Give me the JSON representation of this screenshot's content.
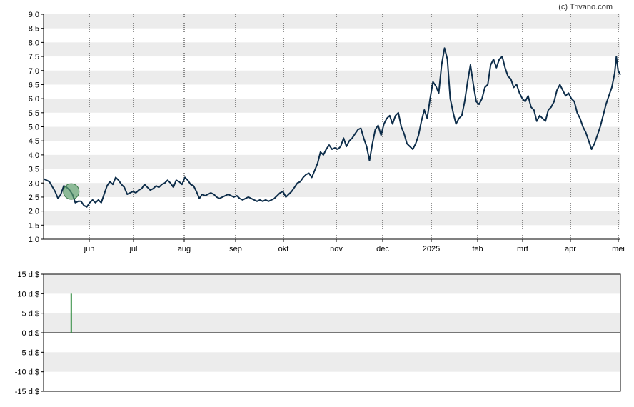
{
  "copyright": "(c) Trivano.com",
  "chart_data": [
    {
      "type": "line",
      "y_ticks": [
        "1,0",
        "1,5",
        "2,0",
        "2,5",
        "3,0",
        "3,5",
        "4,0",
        "4,5",
        "5,0",
        "5,5",
        "6,0",
        "6,5",
        "7,0",
        "7,5",
        "8,0",
        "8,5",
        "9,0"
      ],
      "ylim": [
        1.0,
        9.0
      ],
      "x_ticks": [
        "jun",
        "jul",
        "aug",
        "sep",
        "okt",
        "nov",
        "dec",
        "2025",
        "feb",
        "mrt",
        "apr",
        "mei"
      ],
      "grid": "banded horizontal, dotted vertical",
      "line_color": "#0d2d4a",
      "marker": {
        "x": 0.048,
        "y": 2.7,
        "color": "#5aa06a"
      },
      "series": [
        {
          "points": [
            [
              0.0,
              3.15
            ],
            [
              0.01,
              3.05
            ],
            [
              0.02,
              2.7
            ],
            [
              0.025,
              2.45
            ],
            [
              0.03,
              2.6
            ],
            [
              0.035,
              2.9
            ],
            [
              0.04,
              2.85
            ],
            [
              0.045,
              2.75
            ],
            [
              0.05,
              2.6
            ],
            [
              0.055,
              2.3
            ],
            [
              0.06,
              2.35
            ],
            [
              0.065,
              2.35
            ],
            [
              0.07,
              2.2
            ],
            [
              0.075,
              2.15
            ],
            [
              0.08,
              2.3
            ],
            [
              0.085,
              2.4
            ],
            [
              0.09,
              2.3
            ],
            [
              0.095,
              2.4
            ],
            [
              0.1,
              2.3
            ],
            [
              0.105,
              2.6
            ],
            [
              0.11,
              2.9
            ],
            [
              0.115,
              3.05
            ],
            [
              0.12,
              2.95
            ],
            [
              0.125,
              3.2
            ],
            [
              0.13,
              3.1
            ],
            [
              0.135,
              2.95
            ],
            [
              0.14,
              2.85
            ],
            [
              0.145,
              2.6
            ],
            [
              0.15,
              2.65
            ],
            [
              0.155,
              2.7
            ],
            [
              0.16,
              2.65
            ],
            [
              0.165,
              2.75
            ],
            [
              0.17,
              2.8
            ],
            [
              0.175,
              2.95
            ],
            [
              0.18,
              2.85
            ],
            [
              0.185,
              2.75
            ],
            [
              0.19,
              2.8
            ],
            [
              0.195,
              2.9
            ],
            [
              0.2,
              2.85
            ],
            [
              0.205,
              2.95
            ],
            [
              0.21,
              3.0
            ],
            [
              0.215,
              3.1
            ],
            [
              0.22,
              3.0
            ],
            [
              0.225,
              2.85
            ],
            [
              0.23,
              3.1
            ],
            [
              0.235,
              3.05
            ],
            [
              0.24,
              2.95
            ],
            [
              0.245,
              3.2
            ],
            [
              0.25,
              3.1
            ],
            [
              0.255,
              2.95
            ],
            [
              0.26,
              2.9
            ],
            [
              0.265,
              2.7
            ],
            [
              0.27,
              2.45
            ],
            [
              0.275,
              2.6
            ],
            [
              0.28,
              2.55
            ],
            [
              0.285,
              2.6
            ],
            [
              0.29,
              2.65
            ],
            [
              0.295,
              2.6
            ],
            [
              0.3,
              2.5
            ],
            [
              0.305,
              2.45
            ],
            [
              0.31,
              2.5
            ],
            [
              0.315,
              2.55
            ],
            [
              0.32,
              2.6
            ],
            [
              0.325,
              2.55
            ],
            [
              0.33,
              2.5
            ],
            [
              0.335,
              2.55
            ],
            [
              0.34,
              2.45
            ],
            [
              0.345,
              2.4
            ],
            [
              0.35,
              2.45
            ],
            [
              0.355,
              2.5
            ],
            [
              0.36,
              2.45
            ],
            [
              0.365,
              2.4
            ],
            [
              0.37,
              2.35
            ],
            [
              0.375,
              2.4
            ],
            [
              0.38,
              2.35
            ],
            [
              0.385,
              2.4
            ],
            [
              0.39,
              2.35
            ],
            [
              0.395,
              2.4
            ],
            [
              0.4,
              2.45
            ],
            [
              0.405,
              2.55
            ],
            [
              0.41,
              2.65
            ],
            [
              0.415,
              2.7
            ],
            [
              0.42,
              2.5
            ],
            [
              0.425,
              2.6
            ],
            [
              0.43,
              2.7
            ],
            [
              0.435,
              2.85
            ],
            [
              0.44,
              3.0
            ],
            [
              0.445,
              3.05
            ],
            [
              0.45,
              3.2
            ],
            [
              0.455,
              3.3
            ],
            [
              0.46,
              3.35
            ],
            [
              0.465,
              3.2
            ],
            [
              0.47,
              3.45
            ],
            [
              0.475,
              3.7
            ],
            [
              0.48,
              4.1
            ],
            [
              0.485,
              4.0
            ],
            [
              0.49,
              4.2
            ],
            [
              0.495,
              4.35
            ],
            [
              0.5,
              4.2
            ],
            [
              0.505,
              4.25
            ],
            [
              0.51,
              4.2
            ],
            [
              0.515,
              4.3
            ],
            [
              0.52,
              4.6
            ],
            [
              0.525,
              4.3
            ],
            [
              0.53,
              4.5
            ],
            [
              0.535,
              4.6
            ],
            [
              0.54,
              4.75
            ],
            [
              0.545,
              4.9
            ],
            [
              0.55,
              4.95
            ],
            [
              0.555,
              4.6
            ],
            [
              0.56,
              4.3
            ],
            [
              0.565,
              3.8
            ],
            [
              0.57,
              4.4
            ],
            [
              0.575,
              4.9
            ],
            [
              0.58,
              5.05
            ],
            [
              0.585,
              4.7
            ],
            [
              0.59,
              5.1
            ],
            [
              0.595,
              5.3
            ],
            [
              0.6,
              5.4
            ],
            [
              0.605,
              5.1
            ],
            [
              0.61,
              5.4
            ],
            [
              0.615,
              5.5
            ],
            [
              0.62,
              5.0
            ],
            [
              0.625,
              4.75
            ],
            [
              0.63,
              4.4
            ],
            [
              0.635,
              4.3
            ],
            [
              0.64,
              4.2
            ],
            [
              0.645,
              4.4
            ],
            [
              0.65,
              4.7
            ],
            [
              0.655,
              5.2
            ],
            [
              0.66,
              5.6
            ],
            [
              0.665,
              5.3
            ],
            [
              0.67,
              6.0
            ],
            [
              0.675,
              6.6
            ],
            [
              0.68,
              6.45
            ],
            [
              0.685,
              6.2
            ],
            [
              0.69,
              7.2
            ],
            [
              0.695,
              7.8
            ],
            [
              0.7,
              7.4
            ],
            [
              0.705,
              6.0
            ],
            [
              0.71,
              5.5
            ],
            [
              0.715,
              5.1
            ],
            [
              0.72,
              5.3
            ],
            [
              0.725,
              5.4
            ],
            [
              0.73,
              5.9
            ],
            [
              0.735,
              6.6
            ],
            [
              0.74,
              7.2
            ],
            [
              0.745,
              6.5
            ],
            [
              0.75,
              5.9
            ],
            [
              0.755,
              5.8
            ],
            [
              0.76,
              6.0
            ],
            [
              0.765,
              6.4
            ],
            [
              0.77,
              6.5
            ],
            [
              0.775,
              7.2
            ],
            [
              0.78,
              7.4
            ],
            [
              0.785,
              7.1
            ],
            [
              0.79,
              7.4
            ],
            [
              0.795,
              7.5
            ],
            [
              0.8,
              7.1
            ],
            [
              0.805,
              6.8
            ],
            [
              0.81,
              6.7
            ],
            [
              0.815,
              6.4
            ],
            [
              0.82,
              6.5
            ],
            [
              0.825,
              6.2
            ],
            [
              0.83,
              6.0
            ],
            [
              0.835,
              5.9
            ],
            [
              0.84,
              6.1
            ],
            [
              0.845,
              5.7
            ],
            [
              0.85,
              5.6
            ],
            [
              0.855,
              5.2
            ],
            [
              0.86,
              5.4
            ],
            [
              0.865,
              5.3
            ],
            [
              0.87,
              5.2
            ],
            [
              0.875,
              5.6
            ],
            [
              0.88,
              5.7
            ],
            [
              0.885,
              5.9
            ],
            [
              0.89,
              6.3
            ],
            [
              0.895,
              6.5
            ],
            [
              0.9,
              6.3
            ],
            [
              0.905,
              6.1
            ],
            [
              0.91,
              6.2
            ],
            [
              0.915,
              6.0
            ],
            [
              0.92,
              5.9
            ],
            [
              0.925,
              5.5
            ],
            [
              0.93,
              5.3
            ],
            [
              0.935,
              5.0
            ],
            [
              0.94,
              4.8
            ],
            [
              0.945,
              4.5
            ],
            [
              0.95,
              4.2
            ],
            [
              0.955,
              4.4
            ],
            [
              0.96,
              4.7
            ],
            [
              0.965,
              5.0
            ],
            [
              0.97,
              5.4
            ],
            [
              0.975,
              5.8
            ],
            [
              0.98,
              6.1
            ],
            [
              0.985,
              6.4
            ],
            [
              0.99,
              6.9
            ],
            [
              0.993,
              7.5
            ],
            [
              0.996,
              7.0
            ],
            [
              1.0,
              6.85
            ]
          ]
        }
      ]
    },
    {
      "type": "bar",
      "y_ticks": [
        "15 d.$",
        "10 d.$",
        "5 d.$",
        "0 d.$",
        "-5 d.$",
        "-10 d.$",
        "-15 d.$"
      ],
      "ylim": [
        -15,
        15
      ],
      "bars": [
        {
          "x": 0.048,
          "value": 10,
          "color": "#2e8b3e"
        }
      ]
    }
  ]
}
